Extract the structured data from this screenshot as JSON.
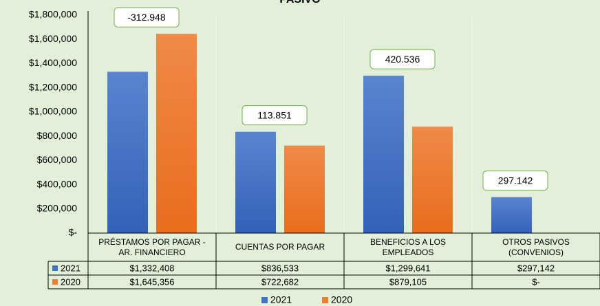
{
  "chart_data": {
    "type": "bar",
    "title": "PASIVO",
    "categories": [
      "PRÉSTAMOS POR PAGAR - AR. FINANCIERO",
      "CUENTAS POR PAGAR",
      "BENEFICIOS A LOS EMPLEADOS",
      "OTROS PASIVOS (CONVENIOS)"
    ],
    "series": [
      {
        "name": "2021",
        "color": "#4472c4",
        "values": [
          1332408,
          836533,
          1299641,
          297142
        ],
        "value_labels": [
          "$1,332,408",
          "$836,533",
          "$1,299,641",
          "$297,142"
        ]
      },
      {
        "name": "2020",
        "color": "#ed7d31",
        "values": [
          1645356,
          722682,
          879105,
          0
        ],
        "value_labels": [
          "$1,645,356",
          "$722,682",
          "$879,105",
          "$-"
        ]
      }
    ],
    "annotations": [
      "-312.948",
      "113.851",
      "420.536",
      "297.142"
    ],
    "ylim": [
      0,
      1800000
    ],
    "yticks": [
      {
        "value": 0,
        "label": "$-"
      },
      {
        "value": 200000,
        "label": "$200,000"
      },
      {
        "value": 400000,
        "label": "$400,000"
      },
      {
        "value": 600000,
        "label": "$600,000"
      },
      {
        "value": 800000,
        "label": "$800,000"
      },
      {
        "value": 1000000,
        "label": "$1,000,000"
      },
      {
        "value": 1200000,
        "label": "$1,200,000"
      },
      {
        "value": 1400000,
        "label": "$1,400,000"
      },
      {
        "value": 1600000,
        "label": "$1,600,000"
      },
      {
        "value": 1800000,
        "label": "$1,800,000"
      }
    ],
    "grid": true,
    "legend": "bottom"
  }
}
